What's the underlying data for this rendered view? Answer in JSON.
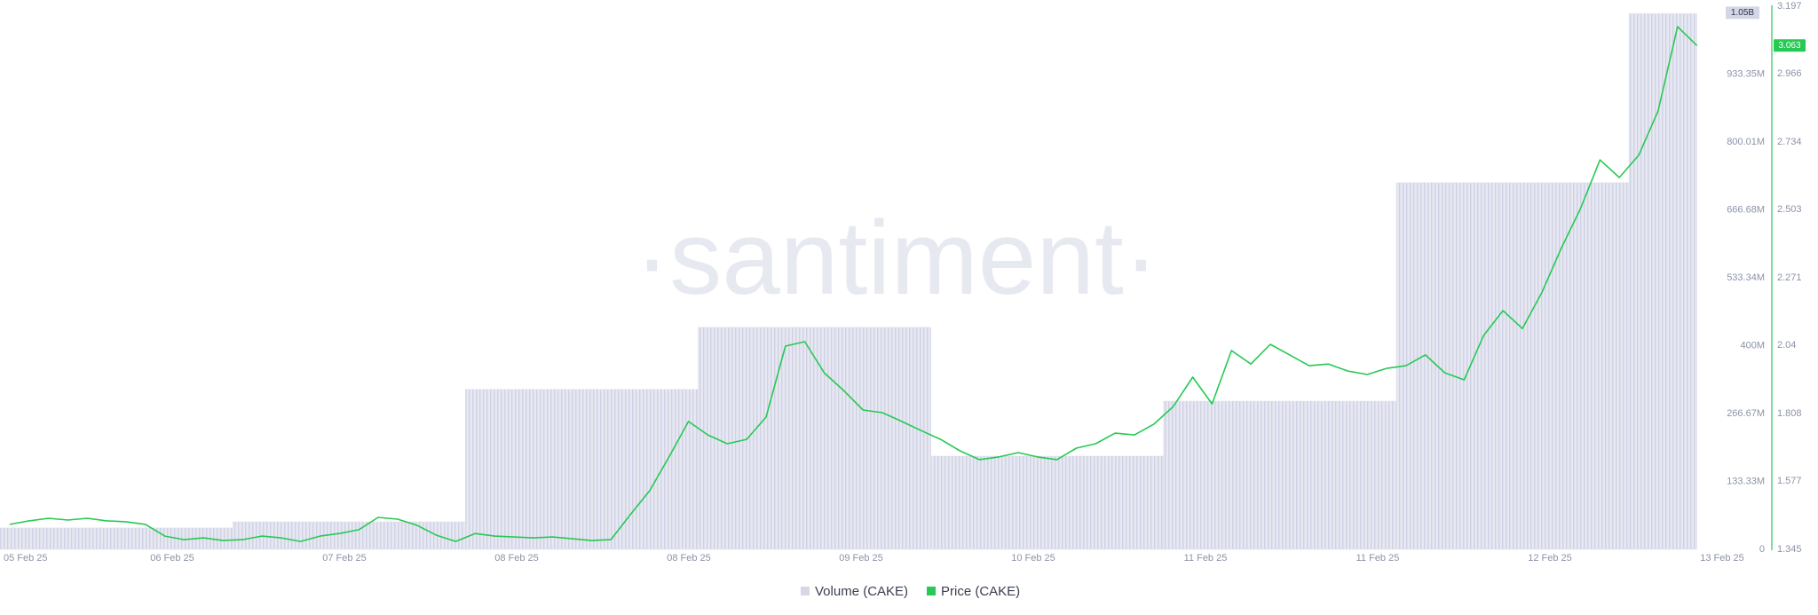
{
  "chart_data": {
    "type": "bar-line",
    "watermark": "·santiment·",
    "xlim": [
      0,
      177.6
    ],
    "xticks": [
      {
        "value": 0,
        "label": "05 Feb 25"
      },
      {
        "value": 17.76,
        "label": "06 Feb 25"
      },
      {
        "value": 35.52,
        "label": "07 Feb 25"
      },
      {
        "value": 53.28,
        "label": "08 Feb 25"
      },
      {
        "value": 71.04,
        "label": "08 Feb 25"
      },
      {
        "value": 88.8,
        "label": "09 Feb 25"
      },
      {
        "value": 106.56,
        "label": "10 Feb 25"
      },
      {
        "value": 124.32,
        "label": "11 Feb 25"
      },
      {
        "value": 142.08,
        "label": "11 Feb 25"
      },
      {
        "value": 159.84,
        "label": "12 Feb 25"
      },
      {
        "value": 177.6,
        "label": "13 Feb 25"
      }
    ],
    "ylim": [
      0,
      1066680000
    ],
    "yticks": [
      0,
      {
        "value": 133330000,
        "label": "133.33M"
      },
      {
        "value": 266670000,
        "label": "266.67M"
      },
      {
        "value": 400000000,
        "label": "400M"
      },
      {
        "value": 533340000,
        "label": "533.34M"
      },
      {
        "value": 666680000,
        "label": "666.68M"
      },
      {
        "value": 800010000,
        "label": "800.01M"
      },
      {
        "value": 933350000,
        "label": "933.35M"
      }
    ],
    "y2lim": [
      1.345,
      3.197
    ],
    "y2ticks": [
      1.345,
      1.577,
      1.808,
      2.04,
      2.271,
      2.503,
      2.734,
      2.966,
      3.197
    ],
    "series": [
      {
        "name": "Volume (CAKE)",
        "type": "bar",
        "color": "#dcdeec",
        "x": [
          0,
          24,
          48,
          72,
          96,
          120,
          144,
          168
        ],
        "values": [
          42000000,
          54000000,
          314000000,
          436000000,
          183000000,
          291000000,
          720000000,
          1052000000
        ],
        "value_labels": [
          null,
          null,
          null,
          null,
          null,
          null,
          null,
          "1.05B"
        ]
      },
      {
        "name": "Price (CAKE)",
        "type": "line",
        "color": "#26c953",
        "axis": "y2",
        "x": [
          1,
          3,
          5,
          7,
          9,
          11,
          13,
          15,
          17,
          19,
          21,
          23,
          25,
          27,
          29,
          31,
          33,
          35,
          37,
          39,
          41,
          43,
          45,
          47,
          49,
          51,
          53,
          55,
          57,
          59,
          61,
          63,
          65,
          67,
          69,
          71,
          73,
          75,
          77,
          79,
          81,
          83,
          85,
          87,
          89,
          91,
          93,
          95,
          97,
          99,
          101,
          103,
          105,
          107,
          109,
          111,
          113,
          115,
          117,
          119,
          121,
          123,
          125,
          127,
          129,
          131,
          133,
          135,
          137,
          139,
          141,
          143,
          145,
          147,
          149,
          151,
          153,
          155,
          157,
          159,
          161,
          163,
          165,
          167,
          169,
          171,
          173,
          175
        ],
        "values": [
          1.43,
          1.442,
          1.451,
          1.445,
          1.451,
          1.442,
          1.439,
          1.43,
          1.39,
          1.378,
          1.384,
          1.375,
          1.378,
          1.39,
          1.384,
          1.372,
          1.39,
          1.399,
          1.412,
          1.454,
          1.448,
          1.427,
          1.393,
          1.372,
          1.399,
          1.39,
          1.387,
          1.384,
          1.387,
          1.381,
          1.375,
          1.378,
          1.463,
          1.545,
          1.66,
          1.781,
          1.735,
          1.705,
          1.72,
          1.796,
          2.038,
          2.053,
          1.947,
          1.887,
          1.82,
          1.811,
          1.781,
          1.75,
          1.72,
          1.681,
          1.651,
          1.66,
          1.675,
          1.66,
          1.651,
          1.69,
          1.705,
          1.741,
          1.735,
          1.772,
          1.832,
          1.932,
          1.841,
          2.023,
          1.977,
          2.044,
          2.008,
          1.971,
          1.977,
          1.953,
          1.941,
          1.962,
          1.971,
          2.008,
          1.947,
          1.923,
          2.074,
          2.159,
          2.098,
          2.22,
          2.371,
          2.507,
          2.673,
          2.613,
          2.689,
          2.84,
          3.127,
          3.063
        ]
      }
    ]
  }
}
